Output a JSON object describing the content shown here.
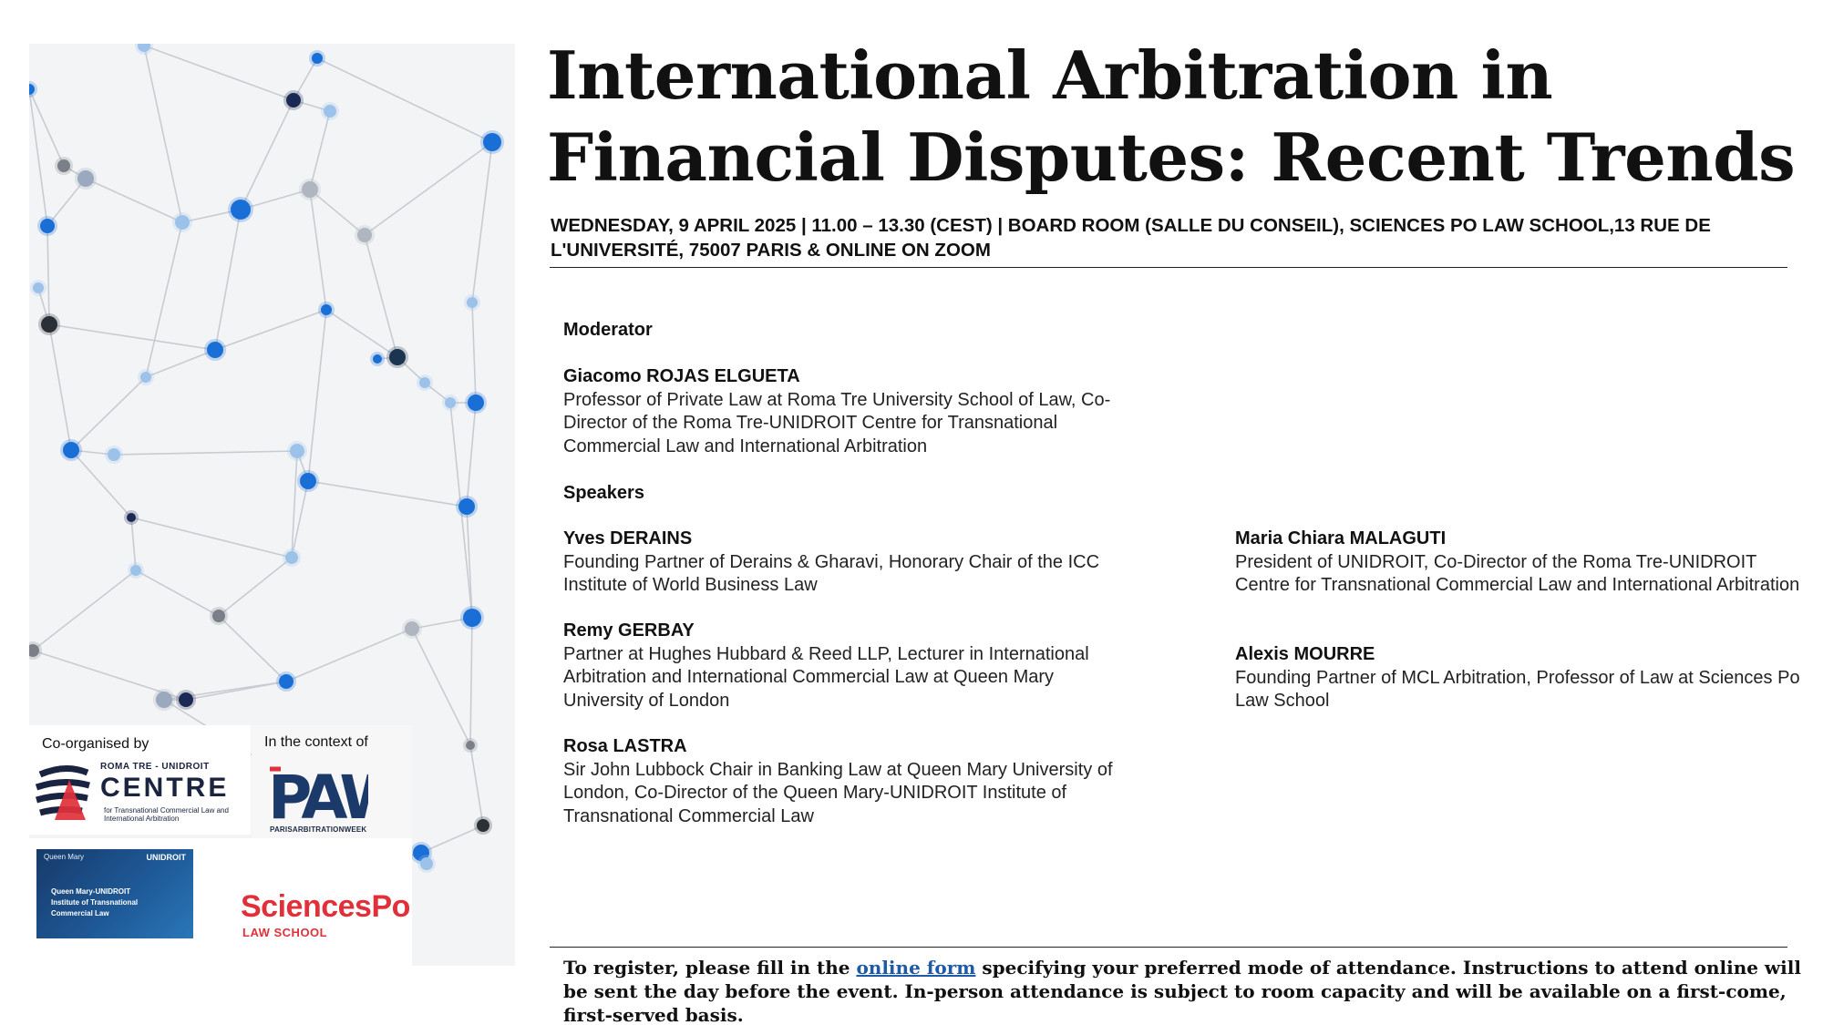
{
  "title": "International Arbitration in Financial Disputes: Recent Trends",
  "event_info": "WEDNESDAY, 9 APRIL 2025 | 11.00 – 13.30 (CEST) | BOARD ROOM (SALLE DU CONSEIL), SCIENCES PO LAW SCHOOL,13 RUE DE L'UNIVERSITÉ, 75007 PARIS & ONLINE ON ZOOM",
  "moderator_label": "Moderator",
  "moderator": {
    "name": "Giacomo ROJAS ELGUETA",
    "desc": "Professor of Private Law at Roma Tre University School of Law, Co-Director of the Roma Tre-UNIDROIT Centre for Transnational Commercial Law and International Arbitration"
  },
  "speakers_label": "Speakers",
  "speakers": [
    {
      "name": "Yves DERAINS",
      "desc": "Founding Partner of Derains & Gharavi, Honorary Chair of the ICC Institute of World Business Law"
    },
    {
      "name": "Remy GERBAY",
      "desc": "Partner at Hughes Hubbard & Reed LLP, Lecturer in International Arbitration and International Commercial Law at Queen Mary University of London"
    },
    {
      "name": "Rosa LASTRA",
      "desc": "Sir John Lubbock Chair in Banking Law at Queen Mary University of London, Co-Director of the Queen Mary-UNIDROIT Institute of Transnational Commercial Law"
    },
    {
      "name": "Maria Chiara MALAGUTI",
      "desc": "President of UNIDROIT, Co-Director of the Roma Tre-UNIDROIT Centre for Transnational Commercial Law and International Arbitration"
    },
    {
      "name": "Alexis MOURRE",
      "desc": "Founding Partner of MCL Arbitration, Professor of Law at Sciences Po Law School"
    }
  ],
  "footer": {
    "before": "To register, please fill in the ",
    "link": "online form",
    "after": " specifying your preferred mode of attendance. Instructions to attend online will be sent the day before the event. In-person attendance is subject to room capacity and will be available on a first-come, first-served basis."
  },
  "logos": {
    "co_organised_caption": "Co-organised by",
    "context_caption": "In the context of",
    "centre_small": "ROMA TRE - UNIDROIT",
    "centre_big": "CENTRE",
    "centre_sub": "for Transnational Commercial Law and International Arbitration",
    "paw_mark": "PAW",
    "paw_text": "PARISARBITRATIONWEEK",
    "qm_brand": "Queen Mary",
    "qm_unidroit": "UNIDROIT",
    "qm_lines": [
      "Queen Mary-UNIDROIT",
      "Institute of Transnational",
      "Commercial Law"
    ],
    "sciencespo": "SciencesPo",
    "lawschool": "LAW SCHOOL"
  },
  "colors": {
    "accent_red": "#e0313b",
    "link_blue": "#1f5aa6",
    "node_blue": "#1a6fd6",
    "navy": "#1a2340"
  }
}
